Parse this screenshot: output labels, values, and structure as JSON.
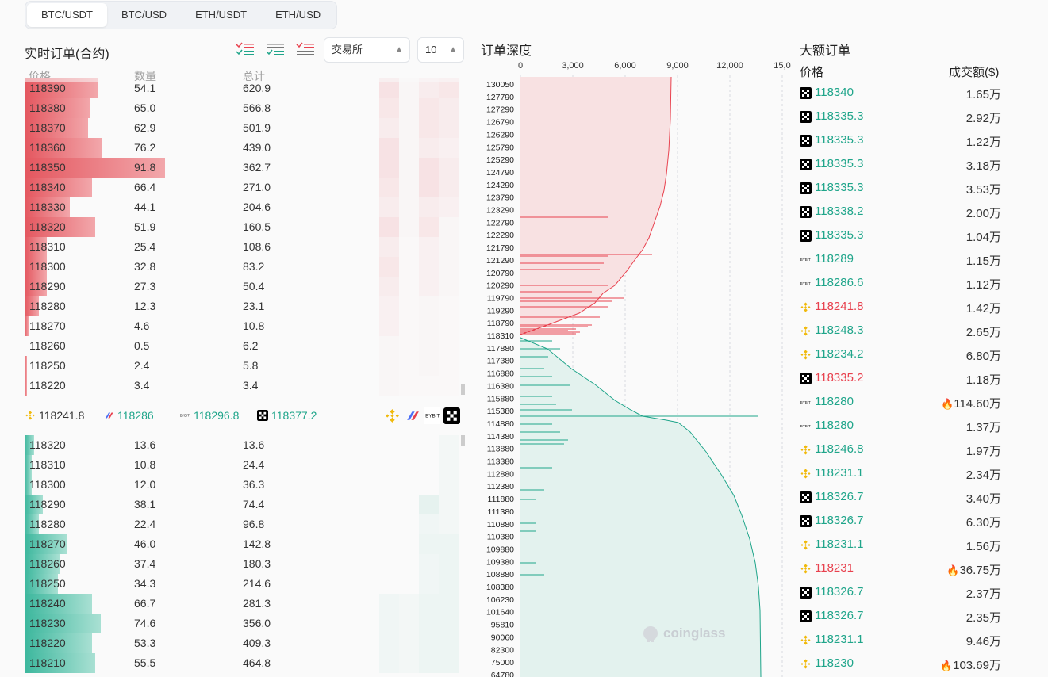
{
  "tabs": [
    "BTC/USDT",
    "BTC/USD",
    "ETH/USDT",
    "ETH/USD"
  ],
  "orderbook": {
    "title": "实时订单(合约)",
    "exchange_select": "交易所",
    "depth_select": "10",
    "col_price": "价格",
    "col_qty": "数量",
    "col_total": "总计",
    "asks": [
      {
        "p": "118390",
        "q": "54.1",
        "t": "620.9",
        "w": 0.52
      },
      {
        "p": "118380",
        "q": "65.0",
        "t": "566.8",
        "w": 0.47
      },
      {
        "p": "118370",
        "q": "62.9",
        "t": "501.9",
        "w": 0.45
      },
      {
        "p": "118360",
        "q": "76.2",
        "t": "439.0",
        "w": 0.55
      },
      {
        "p": "118350",
        "q": "91.8",
        "t": "362.7",
        "w": 1.0
      },
      {
        "p": "118340",
        "q": "66.4",
        "t": "271.0",
        "w": 0.48
      },
      {
        "p": "118330",
        "q": "44.1",
        "t": "204.6",
        "w": 0.32
      },
      {
        "p": "118320",
        "q": "51.9",
        "t": "160.5",
        "w": 0.5
      },
      {
        "p": "118310",
        "q": "25.4",
        "t": "108.6",
        "w": 0.16
      },
      {
        "p": "118300",
        "q": "32.8",
        "t": "83.2",
        "w": 0.16
      },
      {
        "p": "118290",
        "q": "27.3",
        "t": "50.4",
        "w": 0.16
      },
      {
        "p": "118280",
        "q": "12.3",
        "t": "23.1",
        "w": 0.1
      },
      {
        "p": "118270",
        "q": "4.6",
        "t": "10.8",
        "w": 0.03
      },
      {
        "p": "118260",
        "q": "0.5",
        "t": "6.2",
        "w": 0.0
      },
      {
        "p": "118250",
        "q": "2.4",
        "t": "5.8",
        "w": 0.01
      },
      {
        "p": "118220",
        "q": "3.4",
        "t": "3.4",
        "w": 0.01
      }
    ],
    "mid": [
      {
        "ex": "binance",
        "price": "118241.8",
        "color": "#333"
      },
      {
        "ex": "bitget",
        "price": "118286",
        "color": "#1fa58a"
      },
      {
        "ex": "bybit",
        "price": "118296.8",
        "color": "#1fa58a"
      },
      {
        "ex": "okx",
        "price": "118377.2",
        "color": "#1fa58a"
      }
    ],
    "bids": [
      {
        "p": "118320",
        "q": "13.6",
        "t": "13.6",
        "w": 0.07
      },
      {
        "p": "118310",
        "q": "10.8",
        "t": "24.4",
        "w": 0.05
      },
      {
        "p": "118300",
        "q": "12.0",
        "t": "36.3",
        "w": 0.05
      },
      {
        "p": "118290",
        "q": "38.1",
        "t": "74.4",
        "w": 0.13
      },
      {
        "p": "118280",
        "q": "22.4",
        "t": "96.8",
        "w": 0.1
      },
      {
        "p": "118270",
        "q": "46.0",
        "t": "142.8",
        "w": 0.3
      },
      {
        "p": "118260",
        "q": "37.4",
        "t": "180.3",
        "w": 0.25
      },
      {
        "p": "118250",
        "q": "34.3",
        "t": "214.6",
        "w": 0.24
      },
      {
        "p": "118240",
        "q": "66.7",
        "t": "281.3",
        "w": 0.48
      },
      {
        "p": "118230",
        "q": "74.6",
        "t": "356.0",
        "w": 0.54
      },
      {
        "p": "118220",
        "q": "53.3",
        "t": "409.3",
        "w": 0.48
      },
      {
        "p": "118210",
        "q": "55.5",
        "t": "464.8",
        "w": 0.5
      }
    ]
  },
  "depth": {
    "title": "订单深度",
    "x_ticks": [
      "0",
      "3,000",
      "6,000",
      "9,000",
      "12,000",
      "15,0"
    ],
    "y_labels": [
      "130050",
      "127790",
      "127290",
      "126790",
      "126290",
      "125790",
      "125290",
      "124790",
      "124290",
      "123790",
      "123290",
      "122790",
      "122290",
      "121790",
      "121290",
      "120790",
      "120290",
      "119790",
      "119290",
      "118790",
      "118310",
      "117880",
      "117380",
      "116880",
      "116380",
      "115880",
      "115380",
      "114880",
      "114380",
      "113880",
      "113380",
      "112880",
      "112380",
      "111880",
      "111380",
      "110880",
      "110380",
      "109880",
      "109380",
      "108880",
      "108380",
      "106230",
      "101640",
      "95810",
      "90060",
      "82300",
      "75000",
      "64780"
    ],
    "watermark": "coinglass"
  },
  "big_orders": {
    "title": "大额订单",
    "col_price": "价格",
    "col_value": "成交额($)",
    "rows": [
      {
        "ex": "okx",
        "price": "118340",
        "c": "green",
        "v": "1.65万",
        "fire": false
      },
      {
        "ex": "okx",
        "price": "118335.3",
        "c": "green",
        "v": "2.92万",
        "fire": false
      },
      {
        "ex": "okx",
        "price": "118335.3",
        "c": "green",
        "v": "1.22万",
        "fire": false
      },
      {
        "ex": "okx",
        "price": "118335.3",
        "c": "green",
        "v": "3.18万",
        "fire": false
      },
      {
        "ex": "okx",
        "price": "118335.3",
        "c": "green",
        "v": "3.53万",
        "fire": false
      },
      {
        "ex": "okx",
        "price": "118338.2",
        "c": "green",
        "v": "2.00万",
        "fire": false
      },
      {
        "ex": "okx",
        "price": "118335.3",
        "c": "green",
        "v": "1.04万",
        "fire": false
      },
      {
        "ex": "bybit",
        "price": "118289",
        "c": "green",
        "v": "1.15万",
        "fire": false
      },
      {
        "ex": "bybit",
        "price": "118286.6",
        "c": "green",
        "v": "1.12万",
        "fire": false
      },
      {
        "ex": "binance",
        "price": "118241.8",
        "c": "red",
        "v": "1.42万",
        "fire": false
      },
      {
        "ex": "binance",
        "price": "118248.3",
        "c": "green",
        "v": "2.65万",
        "fire": false
      },
      {
        "ex": "binance",
        "price": "118234.2",
        "c": "green",
        "v": "6.80万",
        "fire": false
      },
      {
        "ex": "okx",
        "price": "118335.2",
        "c": "red",
        "v": "1.18万",
        "fire": false
      },
      {
        "ex": "bybit",
        "price": "118280",
        "c": "green",
        "v": "114.60万",
        "fire": true
      },
      {
        "ex": "bybit",
        "price": "118280",
        "c": "green",
        "v": "1.37万",
        "fire": false
      },
      {
        "ex": "binance",
        "price": "118246.8",
        "c": "green",
        "v": "1.97万",
        "fire": false
      },
      {
        "ex": "binance",
        "price": "118231.1",
        "c": "green",
        "v": "2.34万",
        "fire": false
      },
      {
        "ex": "okx",
        "price": "118326.7",
        "c": "green",
        "v": "3.40万",
        "fire": false
      },
      {
        "ex": "okx",
        "price": "118326.7",
        "c": "green",
        "v": "6.30万",
        "fire": false
      },
      {
        "ex": "binance",
        "price": "118231.1",
        "c": "green",
        "v": "1.56万",
        "fire": false
      },
      {
        "ex": "binance",
        "price": "118231",
        "c": "red",
        "v": "36.75万",
        "fire": true
      },
      {
        "ex": "okx",
        "price": "118326.7",
        "c": "green",
        "v": "2.37万",
        "fire": false
      },
      {
        "ex": "okx",
        "price": "118326.7",
        "c": "green",
        "v": "2.35万",
        "fire": false
      },
      {
        "ex": "binance",
        "price": "118231.1",
        "c": "green",
        "v": "9.46万",
        "fire": false
      },
      {
        "ex": "binance",
        "price": "118230",
        "c": "green",
        "v": "103.69万",
        "fire": true
      }
    ]
  }
}
